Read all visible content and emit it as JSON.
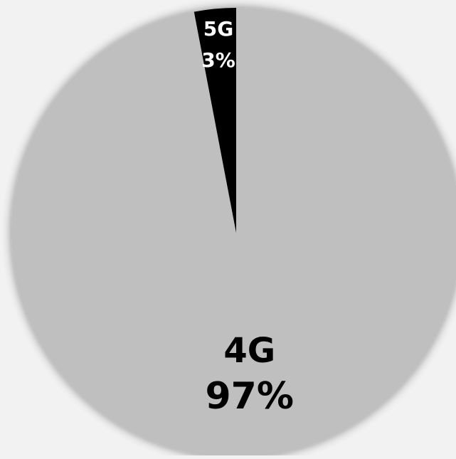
{
  "chart_data": {
    "type": "pie",
    "title": "",
    "slices": [
      {
        "label": "4G",
        "value": 97,
        "value_label": "97%",
        "color": "#bfbfbf",
        "text_color": "#000000"
      },
      {
        "label": "5G",
        "value": 3,
        "value_label": "3%",
        "color": "#000000",
        "text_color": "#ffffff"
      }
    ],
    "legend": "none"
  }
}
